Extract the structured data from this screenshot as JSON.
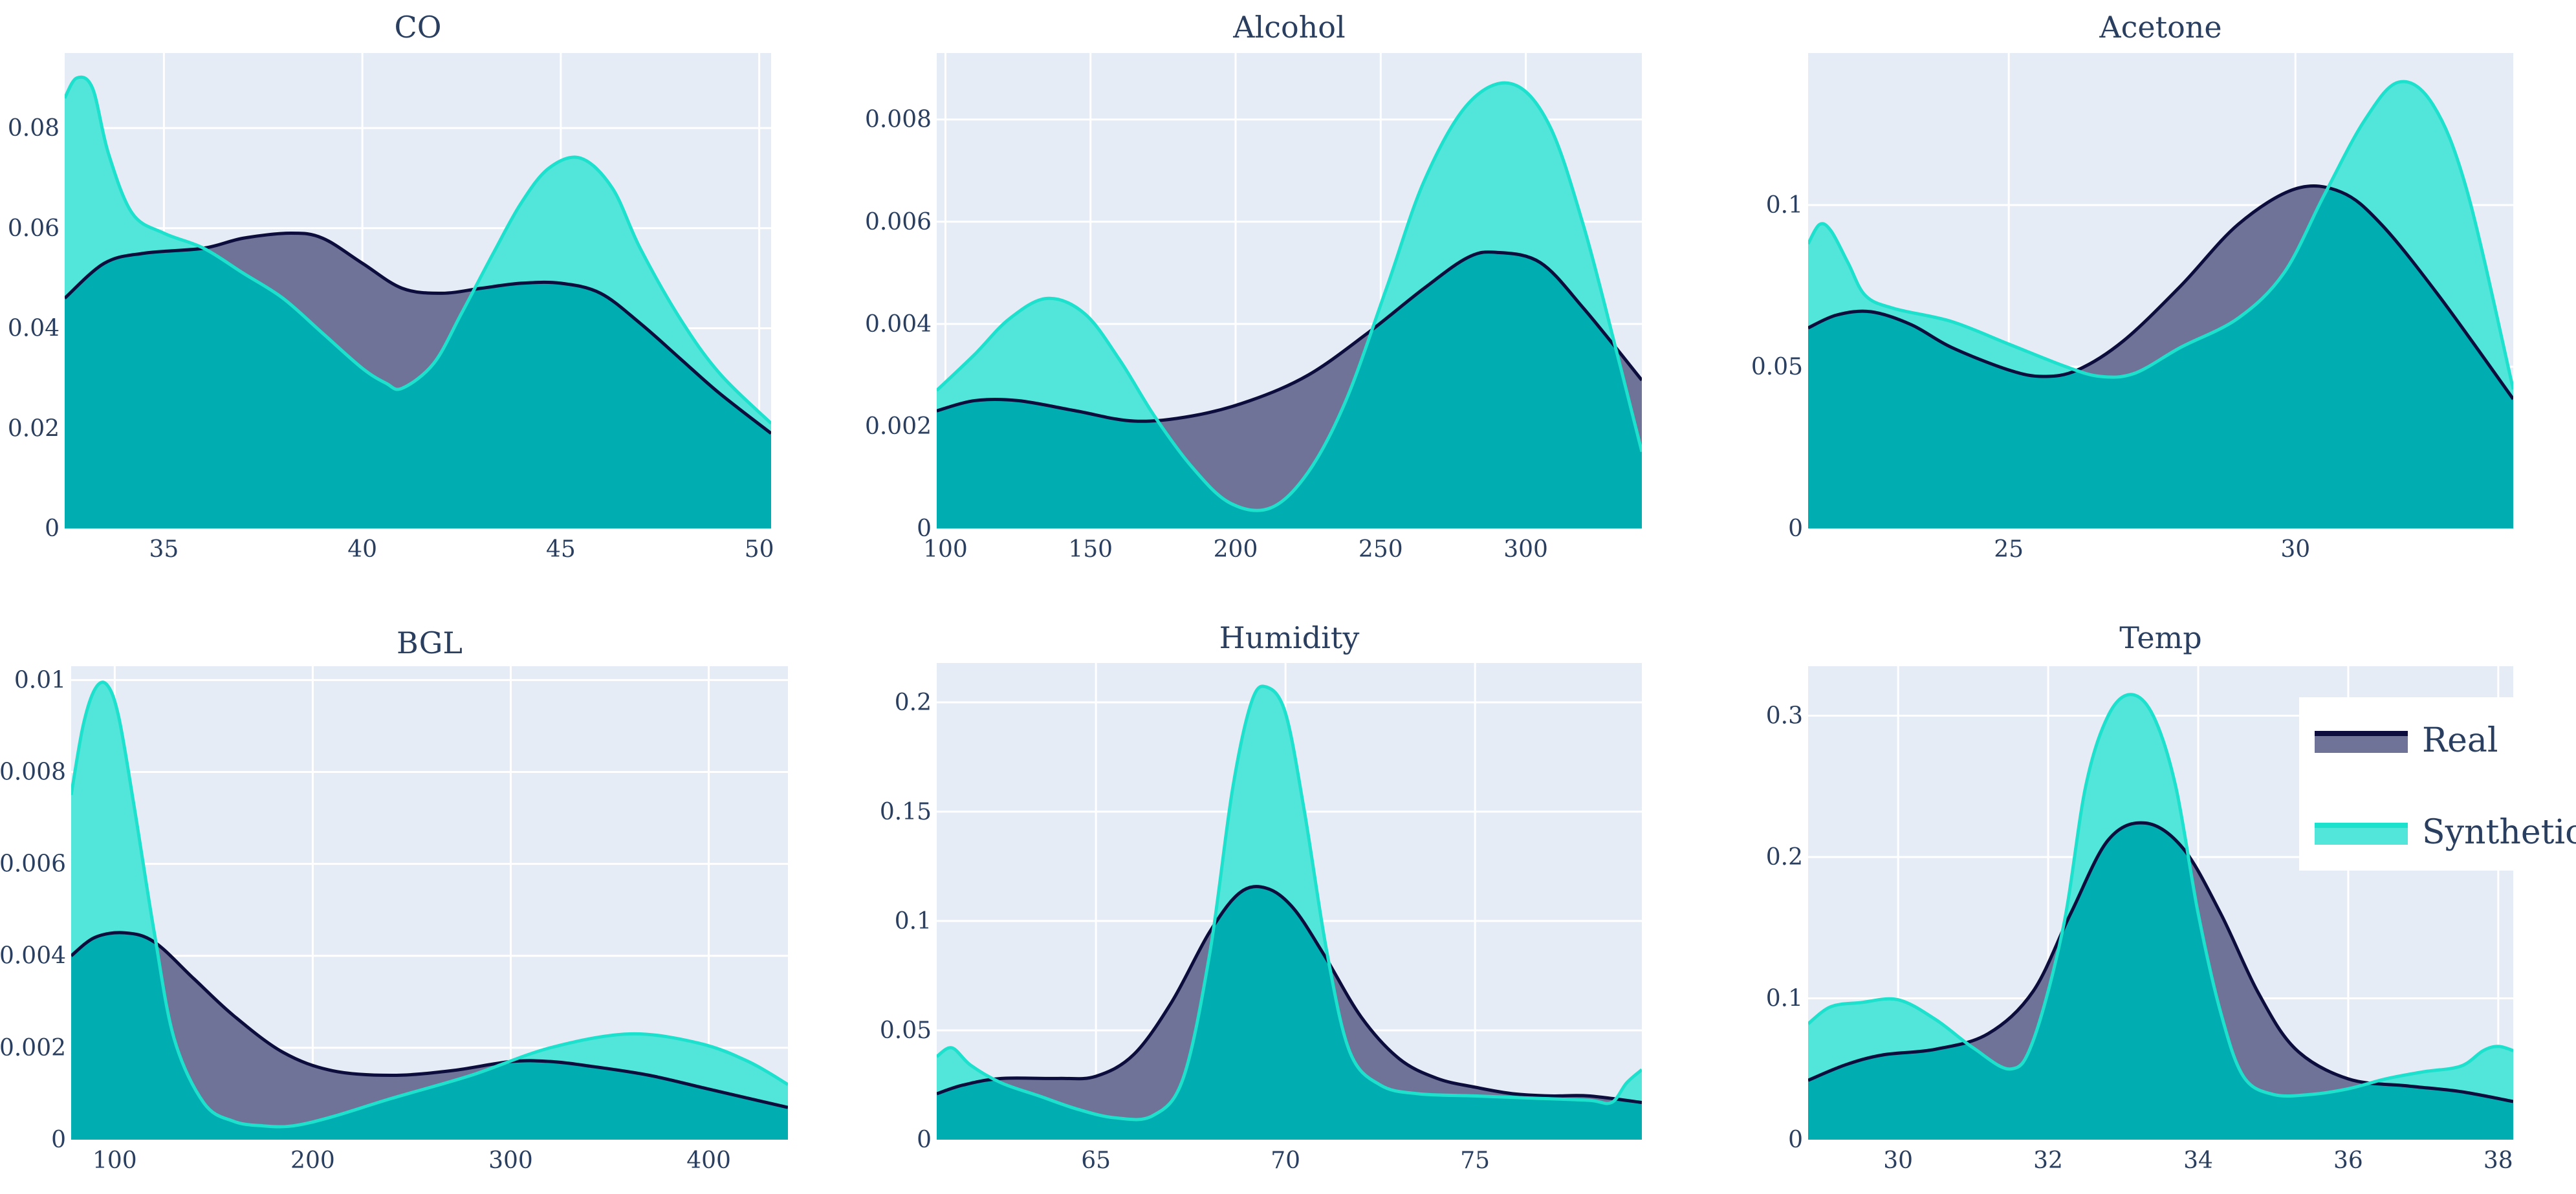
{
  "legend": {
    "items": [
      {
        "label": "Real",
        "line_color": "#0d0d3d",
        "fill_color": "#6f7397"
      },
      {
        "label": "Synthetic",
        "line_color": "#1de0cd",
        "fill_color": "#52e6da"
      }
    ]
  },
  "colors": {
    "plot_background": "#e5ecf6",
    "grid": "#ffffff",
    "overlap_fill": "#00adb0",
    "tick_text": "#2a3f5f"
  },
  "chart_data": [
    {
      "type": "area",
      "title": "CO",
      "xlim": [
        32.5,
        50.3
      ],
      "ylim": [
        0,
        0.095
      ],
      "xticks": [
        35,
        40,
        45,
        50
      ],
      "xtick_labels": [
        "35",
        "40",
        "45",
        "50"
      ],
      "yticks": [
        0,
        0.02,
        0.04,
        0.06,
        0.08
      ],
      "ytick_labels": [
        "0",
        "0.02",
        "0.04",
        "0.06",
        "0.08"
      ],
      "series": [
        {
          "name": "Real",
          "x": [
            32.5,
            33.5,
            34.5,
            36,
            37,
            38.2,
            39,
            40,
            41,
            42,
            43,
            44,
            45,
            46,
            47,
            48,
            49,
            50.3
          ],
          "y": [
            0.046,
            0.053,
            0.055,
            0.056,
            0.058,
            0.059,
            0.058,
            0.053,
            0.048,
            0.047,
            0.048,
            0.049,
            0.049,
            0.047,
            0.041,
            0.034,
            0.027,
            0.019
          ]
        },
        {
          "name": "Synthetic",
          "x": [
            32.5,
            32.8,
            33.2,
            33.6,
            34.2,
            35,
            36,
            37,
            38,
            39,
            40,
            40.6,
            41,
            41.8,
            42.5,
            43.3,
            44,
            44.7,
            45.5,
            46.3,
            47,
            48,
            49,
            50.3
          ],
          "y": [
            0.086,
            0.09,
            0.088,
            0.075,
            0.063,
            0.059,
            0.056,
            0.051,
            0.046,
            0.039,
            0.032,
            0.029,
            0.028,
            0.033,
            0.043,
            0.055,
            0.065,
            0.072,
            0.074,
            0.068,
            0.056,
            0.042,
            0.031,
            0.021
          ]
        }
      ]
    },
    {
      "type": "area",
      "title": "Alcohol",
      "xlim": [
        97,
        340
      ],
      "ylim": [
        0,
        0.0093
      ],
      "xticks": [
        100,
        150,
        200,
        250,
        300
      ],
      "xtick_labels": [
        "100",
        "150",
        "200",
        "250",
        "300"
      ],
      "yticks": [
        0,
        0.002,
        0.004,
        0.006,
        0.008
      ],
      "ytick_labels": [
        "0",
        "0.002",
        "0.004",
        "0.006",
        "0.008"
      ],
      "series": [
        {
          "name": "Real",
          "x": [
            97,
            110,
            125,
            145,
            165,
            185,
            205,
            225,
            245,
            265,
            280,
            290,
            305,
            320,
            340
          ],
          "y": [
            0.0023,
            0.0025,
            0.0025,
            0.0023,
            0.0021,
            0.0022,
            0.0025,
            0.003,
            0.0038,
            0.0047,
            0.0053,
            0.0054,
            0.0052,
            0.0043,
            0.0029
          ]
        },
        {
          "name": "Synthetic",
          "x": [
            97,
            110,
            122,
            135,
            148,
            160,
            172,
            185,
            198,
            212,
            225,
            238,
            252,
            265,
            280,
            295,
            308,
            320,
            332,
            340
          ],
          "y": [
            0.0027,
            0.0034,
            0.0041,
            0.0045,
            0.0042,
            0.0033,
            0.0022,
            0.0012,
            0.0005,
            0.0004,
            0.0011,
            0.0025,
            0.0047,
            0.0068,
            0.0083,
            0.0087,
            0.0079,
            0.0059,
            0.0033,
            0.0015
          ]
        }
      ]
    },
    {
      "type": "area",
      "title": "Acetone",
      "xlim": [
        21.5,
        33.8
      ],
      "ylim": [
        0,
        0.147
      ],
      "xticks": [
        25,
        30
      ],
      "xtick_labels": [
        "25",
        "30"
      ],
      "yticks": [
        0,
        0.05,
        0.1
      ],
      "ytick_labels": [
        "0",
        "0.05",
        "0.1"
      ],
      "series": [
        {
          "name": "Real",
          "x": [
            21.5,
            22,
            22.6,
            23.3,
            24,
            25,
            25.6,
            26.2,
            27,
            28,
            29,
            30,
            30.8,
            31.5,
            32.5,
            33.8
          ],
          "y": [
            0.062,
            0.066,
            0.067,
            0.063,
            0.056,
            0.049,
            0.047,
            0.049,
            0.058,
            0.075,
            0.094,
            0.105,
            0.104,
            0.094,
            0.072,
            0.04
          ]
        },
        {
          "name": "Synthetic",
          "x": [
            21.5,
            21.7,
            21.9,
            22.2,
            22.5,
            23,
            24,
            25,
            26,
            26.6,
            27.2,
            28,
            29,
            29.8,
            30.5,
            31.2,
            31.8,
            32.4,
            33,
            33.8
          ],
          "y": [
            0.088,
            0.094,
            0.092,
            0.082,
            0.072,
            0.068,
            0.064,
            0.057,
            0.05,
            0.047,
            0.048,
            0.056,
            0.065,
            0.079,
            0.103,
            0.126,
            0.138,
            0.131,
            0.104,
            0.043
          ]
        }
      ]
    },
    {
      "type": "area",
      "title": "BGL",
      "xlim": [
        78,
        440
      ],
      "ylim": [
        0,
        0.0103
      ],
      "xticks": [
        100,
        200,
        300,
        400
      ],
      "xtick_labels": [
        "100",
        "200",
        "300",
        "400"
      ],
      "yticks": [
        0,
        0.002,
        0.004,
        0.006,
        0.008,
        0.01
      ],
      "ytick_labels": [
        "0",
        "0.002",
        "0.004",
        "0.006",
        "0.008",
        "0.01"
      ],
      "series": [
        {
          "name": "Real",
          "x": [
            78,
            90,
            105,
            120,
            140,
            160,
            185,
            210,
            240,
            270,
            300,
            320,
            340,
            370,
            400,
            440
          ],
          "y": [
            0.004,
            0.0044,
            0.0045,
            0.0043,
            0.0035,
            0.0027,
            0.0019,
            0.0015,
            0.0014,
            0.0015,
            0.0017,
            0.0017,
            0.0016,
            0.0014,
            0.0011,
            0.0007
          ]
        },
        {
          "name": "Synthetic",
          "x": [
            78,
            84,
            90,
            96,
            102,
            110,
            120,
            130,
            145,
            160,
            175,
            190,
            210,
            240,
            280,
            320,
            360,
            395,
            420,
            440
          ],
          "y": [
            0.0075,
            0.009,
            0.0098,
            0.0099,
            0.0092,
            0.0072,
            0.0045,
            0.0022,
            0.0008,
            0.0004,
            0.0003,
            0.0003,
            0.0005,
            0.0009,
            0.0014,
            0.002,
            0.0023,
            0.0021,
            0.0017,
            0.0012
          ]
        }
      ]
    },
    {
      "type": "area",
      "title": "Humidity",
      "xlim": [
        60.8,
        79.4
      ],
      "ylim": [
        0,
        0.218
      ],
      "xticks": [
        65,
        70,
        75
      ],
      "xtick_labels": [
        "65",
        "70",
        "75"
      ],
      "yticks": [
        0,
        0.05,
        0.1,
        0.15,
        0.2
      ],
      "ytick_labels": [
        "0",
        "0.05",
        "0.1",
        "0.15",
        "0.2"
      ],
      "series": [
        {
          "name": "Real",
          "x": [
            60.8,
            61.5,
            62.5,
            64,
            65,
            66,
            67,
            68,
            68.8,
            69.5,
            70.2,
            71,
            72,
            73,
            74,
            75,
            76,
            77,
            78,
            79.4
          ],
          "y": [
            0.021,
            0.025,
            0.028,
            0.028,
            0.029,
            0.039,
            0.063,
            0.095,
            0.113,
            0.115,
            0.106,
            0.085,
            0.056,
            0.037,
            0.028,
            0.024,
            0.021,
            0.02,
            0.02,
            0.017
          ]
        },
        {
          "name": "Synthetic",
          "x": [
            60.8,
            61.2,
            61.7,
            62.5,
            63.5,
            64.5,
            65.5,
            66.5,
            67.3,
            68,
            68.6,
            69.1,
            69.5,
            70,
            70.5,
            71.1,
            71.7,
            72.5,
            73.5,
            75,
            76.5,
            78,
            78.6,
            79,
            79.4
          ],
          "y": [
            0.038,
            0.042,
            0.034,
            0.026,
            0.02,
            0.014,
            0.01,
            0.011,
            0.028,
            0.085,
            0.16,
            0.2,
            0.207,
            0.195,
            0.15,
            0.085,
            0.04,
            0.025,
            0.021,
            0.02,
            0.019,
            0.018,
            0.017,
            0.026,
            0.032
          ]
        }
      ]
    },
    {
      "type": "area",
      "title": "Temp",
      "xlim": [
        28.8,
        38.2
      ],
      "ylim": [
        0,
        0.335
      ],
      "xticks": [
        30,
        32,
        34,
        36,
        38
      ],
      "xtick_labels": [
        "30",
        "32",
        "34",
        "36",
        "38"
      ],
      "yticks": [
        0,
        0.1,
        0.2,
        0.3
      ],
      "ytick_labels": [
        "0",
        "0.1",
        "0.2",
        "0.3"
      ],
      "series": [
        {
          "name": "Real",
          "x": [
            28.8,
            29.3,
            29.8,
            30.5,
            31.2,
            31.8,
            32.3,
            32.8,
            33.3,
            33.8,
            34.3,
            34.8,
            35.3,
            36,
            36.8,
            37.5,
            38.2
          ],
          "y": [
            0.042,
            0.053,
            0.06,
            0.064,
            0.075,
            0.105,
            0.16,
            0.212,
            0.224,
            0.206,
            0.16,
            0.104,
            0.064,
            0.043,
            0.038,
            0.034,
            0.027
          ]
        },
        {
          "name": "Synthetic",
          "x": [
            28.8,
            29.1,
            29.5,
            30,
            30.5,
            31,
            31.5,
            31.8,
            32.2,
            32.5,
            32.8,
            33.1,
            33.4,
            33.7,
            34,
            34.3,
            34.6,
            35,
            35.5,
            36,
            36.5,
            37,
            37.5,
            37.8,
            38,
            38.2
          ],
          "y": [
            0.082,
            0.094,
            0.097,
            0.099,
            0.085,
            0.065,
            0.05,
            0.07,
            0.15,
            0.25,
            0.3,
            0.315,
            0.3,
            0.25,
            0.16,
            0.09,
            0.045,
            0.032,
            0.032,
            0.036,
            0.043,
            0.048,
            0.052,
            0.063,
            0.066,
            0.063
          ]
        }
      ]
    }
  ]
}
